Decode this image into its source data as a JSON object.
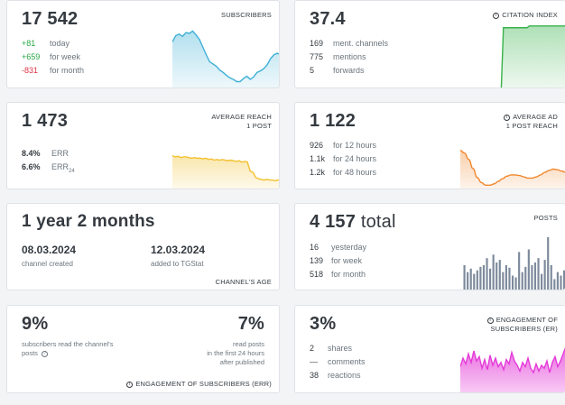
{
  "subscribers": {
    "value": "17 542",
    "label": "SUBSCRIBERS",
    "rows": [
      {
        "value": "+81",
        "text": "today",
        "color": "#28a745"
      },
      {
        "value": "+659",
        "text": "for week",
        "color": "#28a745"
      },
      {
        "value": "-831",
        "text": "for month",
        "color": "#dc3545"
      }
    ],
    "chart_color": "#3fb0d6"
  },
  "citation": {
    "value": "37.4",
    "label": "CITATION INDEX",
    "rows": [
      {
        "value": "169",
        "text": "ment. channels"
      },
      {
        "value": "775",
        "text": "mentions"
      },
      {
        "value": "5",
        "text": "forwards"
      }
    ],
    "chart_color": "#38b24a"
  },
  "reach": {
    "value": "1 473",
    "label_line1": "AVERAGE REACH",
    "label_line2": "1 POST",
    "err_value": "8.4%",
    "err_text": "ERR",
    "err24_value": "6.6%",
    "err24_text": "ERR",
    "err24_sub": "24",
    "chart_color": "#f2c12e"
  },
  "ad_reach": {
    "value": "1 122",
    "label_line1": "AVERAGE AD",
    "label_line2": "1 POST REACH",
    "rows": [
      {
        "value": "926",
        "text": "for 12 hours"
      },
      {
        "value": "1.1k",
        "text": "for 24 hours"
      },
      {
        "value": "1.2k",
        "text": "for 48 hours"
      }
    ],
    "chart_color": "#f0872c"
  },
  "age": {
    "value": "1 year 2 months",
    "created_date": "08.03.2024",
    "created_text": "channel created",
    "added_date": "12.03.2024",
    "added_text": "added to TGStat",
    "label": "CHANNEL'S AGE"
  },
  "posts": {
    "value": "4 157",
    "value_suffix": "total",
    "label": "POSTS",
    "rows": [
      {
        "value": "16",
        "text": "yesterday"
      },
      {
        "value": "139",
        "text": "for week"
      },
      {
        "value": "518",
        "text": "for month"
      }
    ],
    "chart_color": "#7d8a9c"
  },
  "err_card": {
    "left_value": "9%",
    "left_text_line1": "subscribers read the channel's",
    "left_text_line2": "posts",
    "right_value": "7%",
    "right_text_line1": "read posts",
    "right_text_line2": "in the first 24 hours",
    "right_text_line3": "after published",
    "label": "ENGAGEMENT OF SUBSCRIBERS (ERR)"
  },
  "er_card": {
    "value": "3%",
    "label_line1": "ENGAGEMENT OF",
    "label_line2": "SUBSCRIBERS (ER)",
    "rows": [
      {
        "value": "2",
        "text": "shares"
      },
      {
        "value": "—",
        "text": "comments"
      },
      {
        "value": "38",
        "text": "reactions"
      }
    ],
    "chart_color": "#e43ad8"
  },
  "chart_data": [
    {
      "type": "area",
      "name": "subscribers-trend",
      "values": [
        62,
        70,
        72,
        69,
        74,
        73,
        76,
        71,
        65,
        55,
        45,
        36,
        33,
        30,
        25,
        22,
        18,
        15,
        13,
        10,
        10,
        14,
        17,
        13,
        16,
        22,
        24,
        27,
        32,
        40,
        45,
        47,
        45
      ]
    },
    {
      "type": "area",
      "name": "citation-trend",
      "values": [
        0,
        0,
        0,
        0,
        0,
        0,
        0,
        0,
        0,
        0,
        0,
        0,
        0,
        0,
        0,
        0,
        0,
        0,
        0,
        0,
        70,
        70,
        70,
        70,
        70,
        70,
        70,
        70,
        70,
        70,
        70,
        70,
        72,
        72,
        72,
        72,
        72,
        72,
        72,
        72,
        72,
        72,
        72,
        72,
        72,
        72,
        72,
        72,
        72,
        72
      ]
    },
    {
      "type": "area",
      "name": "reach-trend",
      "values": [
        54,
        52,
        53,
        51,
        52,
        52,
        51,
        50,
        51,
        50,
        50,
        49,
        50,
        48,
        49,
        47,
        48,
        47,
        48,
        47,
        46,
        47,
        46,
        45,
        46,
        44,
        45,
        44,
        30,
        28,
        20,
        18,
        17,
        16,
        17,
        16,
        16,
        15,
        16,
        16
      ]
    },
    {
      "type": "area",
      "name": "ad-reach-trend",
      "values": [
        62,
        58,
        48,
        34,
        20,
        12,
        8,
        8,
        10,
        14,
        18,
        22,
        24,
        24,
        23,
        21,
        19,
        19,
        21,
        24,
        28,
        31,
        33,
        32,
        30,
        28
      ]
    },
    {
      "type": "bar",
      "name": "posts-per-day",
      "values": [
        30,
        22,
        26,
        20,
        24,
        28,
        30,
        38,
        26,
        42,
        33,
        36,
        22,
        30,
        27,
        18,
        16,
        45,
        22,
        28,
        48,
        30,
        33,
        38,
        20,
        36,
        62,
        30,
        14,
        22,
        18,
        24
      ]
    },
    {
      "type": "area",
      "name": "er-trend",
      "values": [
        38,
        50,
        42,
        56,
        44,
        60,
        46,
        52,
        36,
        48,
        34,
        54,
        40,
        50,
        38,
        44,
        34,
        48,
        42,
        58,
        46,
        40,
        32,
        44,
        38,
        50,
        36,
        30,
        42,
        32,
        40,
        36,
        46,
        30,
        44,
        52,
        38,
        46,
        56,
        66
      ]
    }
  ]
}
